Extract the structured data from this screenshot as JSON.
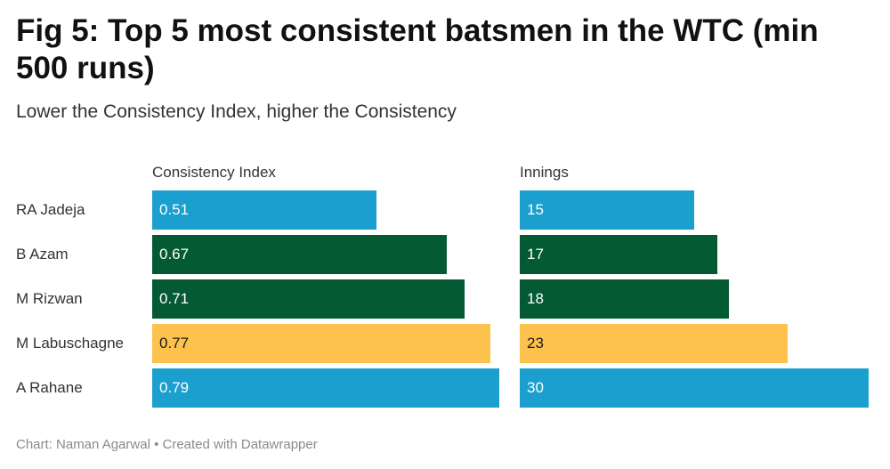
{
  "title": "Fig 5: Top 5 most consistent batsmen in the WTC (min 500 runs)",
  "subtitle": "Lower the Consistency Index, higher the Consistency",
  "footer": "Chart: Naman Agarwal • Created with Datawrapper",
  "colors": {
    "blue": "#1a9fce",
    "green": "#045a32",
    "yellow": "#fdc14e"
  },
  "chart_data": {
    "type": "bar",
    "categories": [
      "RA Jadeja",
      "B Azam",
      "M Rizwan",
      "M Labuschagne",
      "A Rahane"
    ],
    "bar_colors": [
      "blue",
      "green",
      "green",
      "yellow",
      "blue"
    ],
    "series": [
      {
        "name": "Consistency Index",
        "values": [
          0.51,
          0.67,
          0.71,
          0.77,
          0.79
        ],
        "labels": [
          "0.51",
          "0.67",
          "0.71",
          "0.77",
          "0.79"
        ],
        "xlim": [
          0,
          0.79
        ]
      },
      {
        "name": "Innings",
        "values": [
          15,
          17,
          18,
          23,
          30
        ],
        "labels": [
          "15",
          "17",
          "18",
          "23",
          "30"
        ],
        "xlim": [
          0,
          30
        ]
      }
    ]
  }
}
